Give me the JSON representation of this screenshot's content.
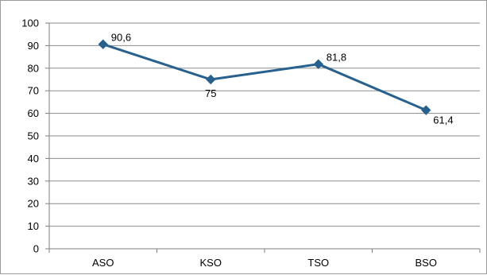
{
  "chart_data": {
    "type": "line",
    "categories": [
      "ASO",
      "KSO",
      "TSO",
      "BSO"
    ],
    "values": [
      90.6,
      75,
      81.8,
      61.4
    ],
    "data_labels": [
      "90,6",
      "75",
      "81,8",
      "61,4"
    ],
    "y_ticks": [
      "0",
      "10",
      "20",
      "30",
      "40",
      "50",
      "60",
      "70",
      "80",
      "90",
      "100"
    ],
    "ylim": [
      0,
      100
    ],
    "grid": true,
    "legend": "none",
    "title": "",
    "xlabel": "",
    "ylabel": "",
    "colors": {
      "line": "#27618f",
      "grid": "#8c8c8c",
      "axis": "#7f7f7f"
    }
  }
}
